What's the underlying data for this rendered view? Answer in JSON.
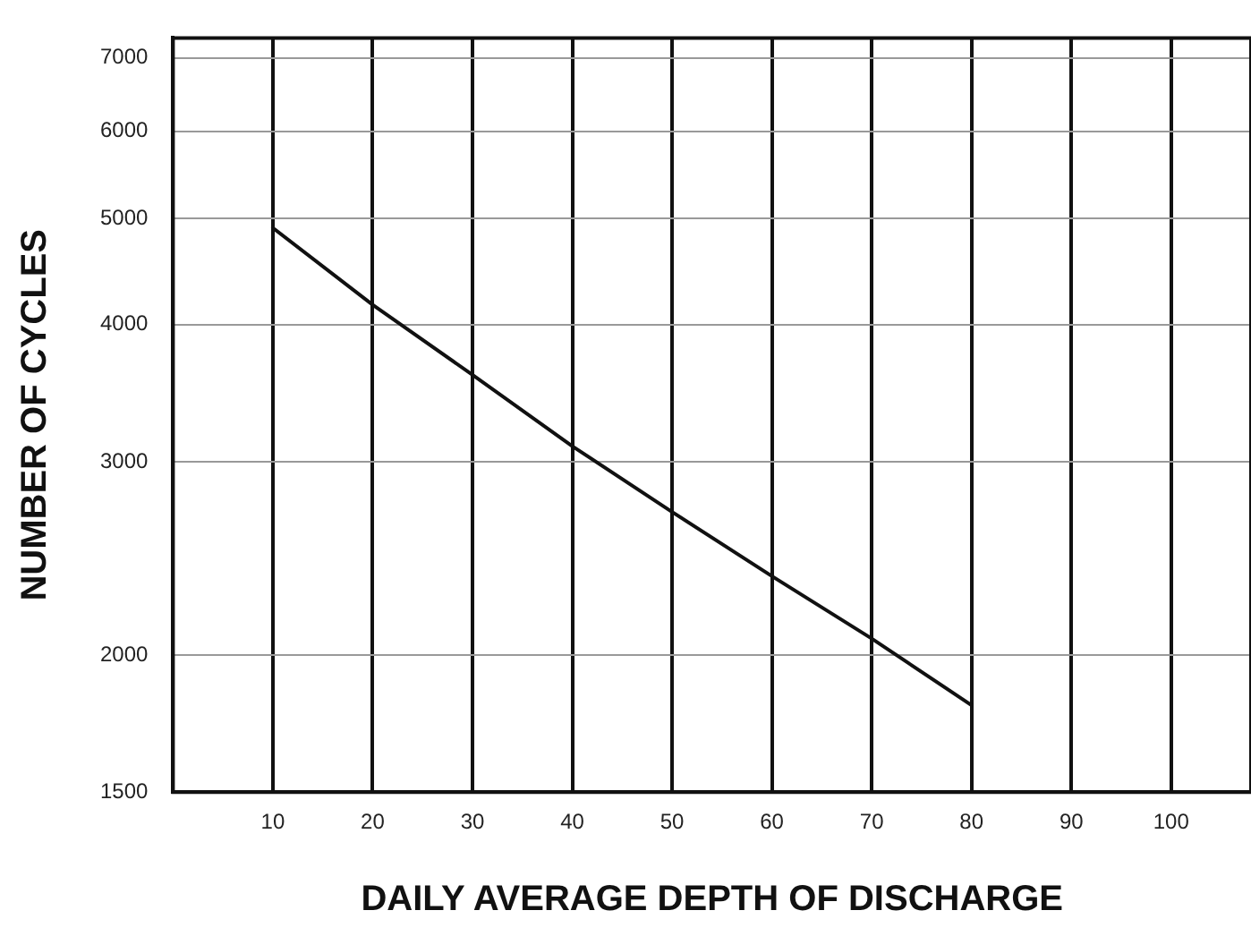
{
  "chart_data": {
    "type": "line",
    "xlabel": "DAILY AVERAGE DEPTH OF DISCHARGE",
    "ylabel": "NUMBER OF CYCLES",
    "log": "y",
    "grid": true,
    "legend": false,
    "marker": "none",
    "line_style": "solid",
    "xlim": [
      0,
      108
    ],
    "xticks": [
      10,
      20,
      30,
      40,
      50,
      60,
      70,
      80,
      90,
      100
    ],
    "ylim": [
      1500,
      7300
    ],
    "yticks": [
      1500,
      2000,
      3000,
      4000,
      5000,
      6000,
      7000
    ],
    "series": [
      {
        "color": "#111111",
        "x": [
          10,
          20,
          30,
          40,
          50,
          60,
          70,
          80
        ],
        "values": [
          4900,
          4170,
          3600,
          3100,
          2700,
          2360,
          2070,
          1800
        ]
      }
    ]
  }
}
